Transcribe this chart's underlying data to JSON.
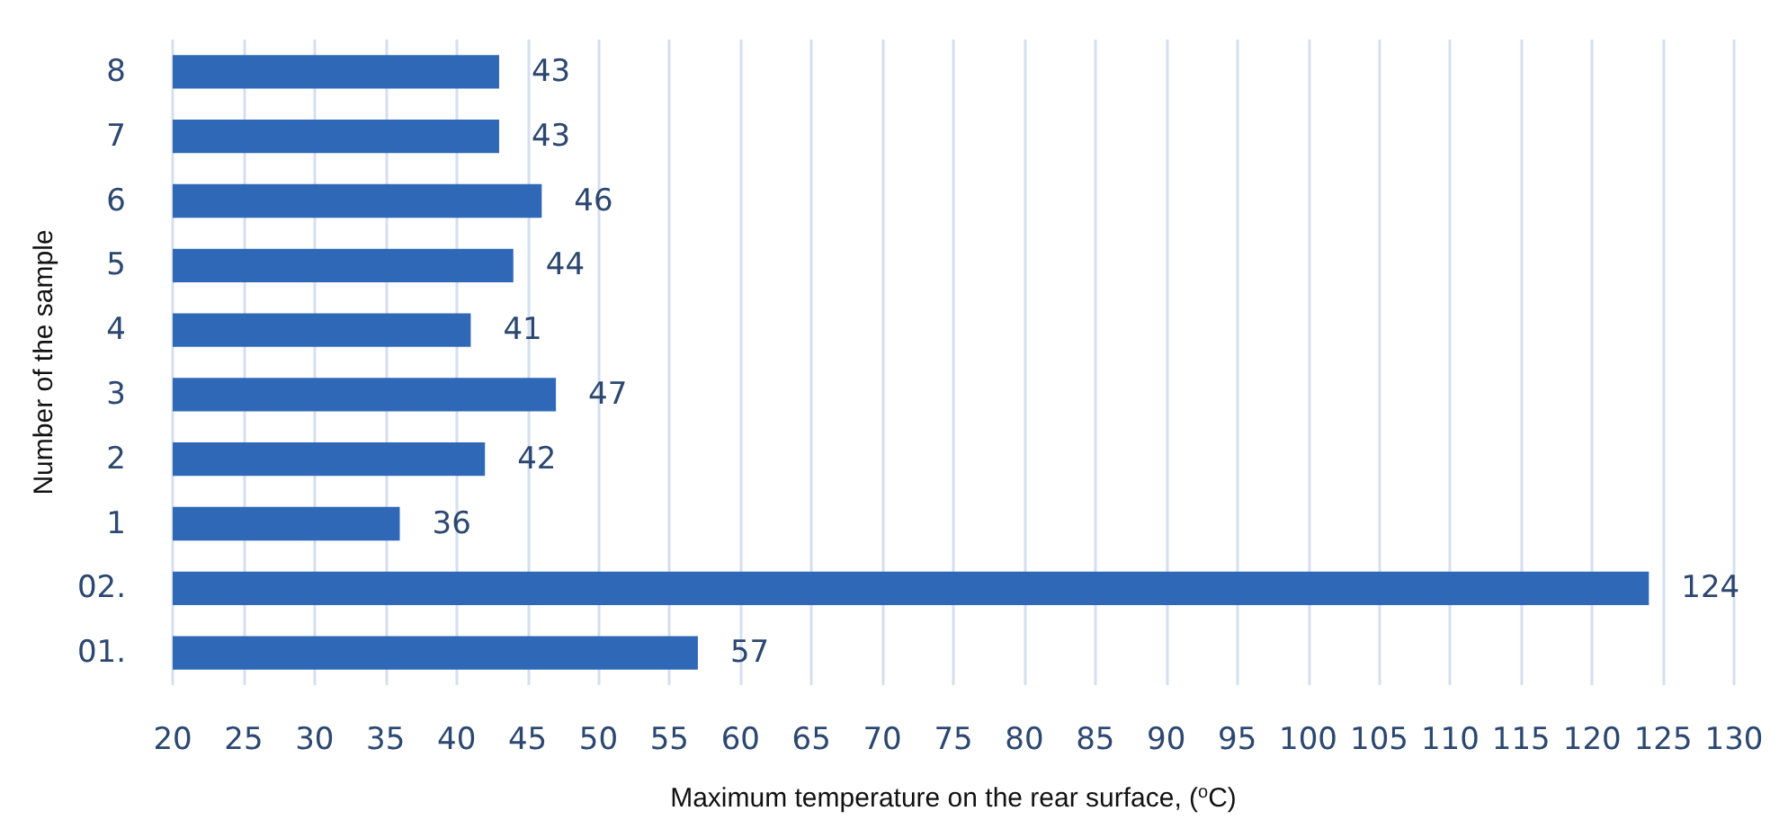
{
  "chart_data": {
    "type": "bar",
    "orientation": "horizontal",
    "xlabel": "Maximum temperature on the rear surface, ($^{o}$C)",
    "ylabel": "Number of the sample",
    "categories": [
      "8",
      "7",
      "6",
      "5",
      "4",
      "3",
      "2",
      "1",
      "02.",
      "01."
    ],
    "values": [
      43,
      43,
      46,
      44,
      41,
      47,
      42,
      36,
      124,
      57
    ],
    "color": "#3068b8",
    "data_labels": true,
    "xlim": [
      20,
      130
    ],
    "xticks": [
      20,
      25,
      30,
      35,
      40,
      45,
      50,
      55,
      60,
      65,
      70,
      75,
      80,
      85,
      90,
      95,
      100,
      105,
      110,
      115,
      120,
      125,
      130
    ],
    "grid": "x"
  }
}
